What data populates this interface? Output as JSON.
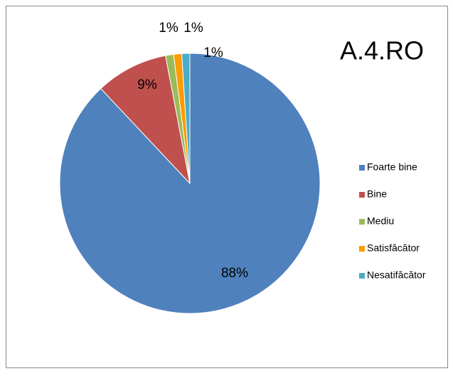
{
  "chart_data": {
    "type": "pie",
    "title": "A.4.RO",
    "categories": [
      "Foarte bine",
      "Bine",
      "Mediu",
      "Satisfăcător",
      "Nesatifăcător"
    ],
    "values": [
      88,
      9,
      1,
      1,
      1
    ],
    "value_labels": [
      "88%",
      "9%",
      "1%",
      "1%",
      "1%"
    ],
    "colors": [
      "#4f81bd",
      "#c0504d",
      "#9bbb59",
      "#ff9a00",
      "#4bacc6"
    ],
    "legend": "right"
  }
}
